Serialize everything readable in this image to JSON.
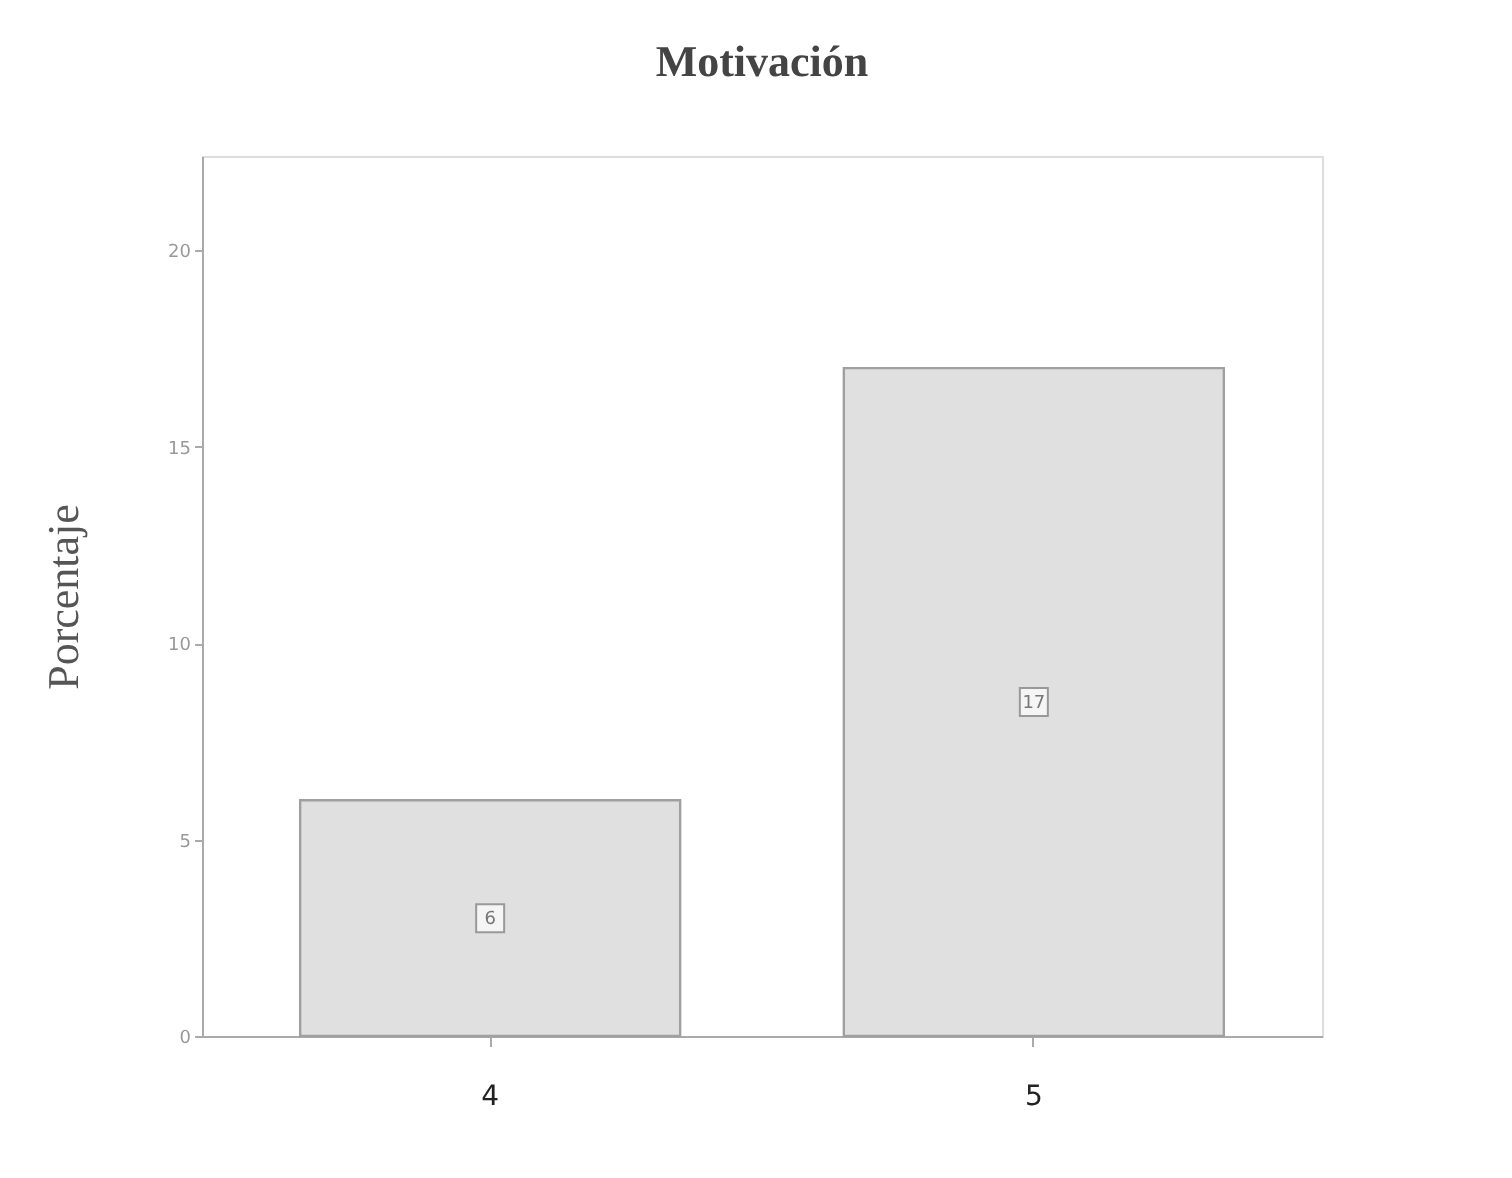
{
  "chart_data": {
    "type": "bar",
    "title": "Motivación",
    "ylabel": "Porcentaje",
    "categories": [
      "4",
      "5"
    ],
    "values": [
      6,
      17
    ],
    "color": "#e0e0e0",
    "ylim": [
      0,
      22.4
    ],
    "yticks": [
      0,
      5,
      10,
      15,
      20
    ],
    "grid": false,
    "data_labels": true
  }
}
